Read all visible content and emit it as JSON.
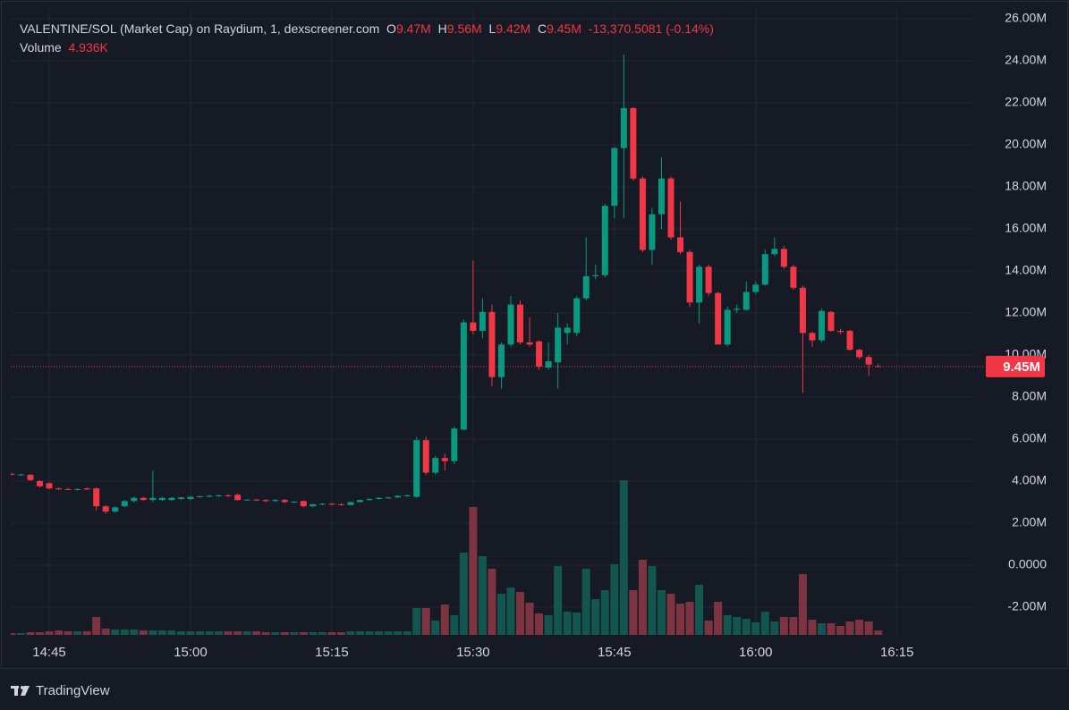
{
  "chart_data": {
    "type": "candlestick",
    "header": {
      "title": "VALENTINE/SOL (Market Cap) on Raydium, 1, dexscreener.com",
      "open_label": "O",
      "open": {
        "value": 9470000,
        "label": "9.47M"
      },
      "high_label": "H",
      "high": {
        "value": 9560000,
        "label": "9.56M"
      },
      "low_label": "L",
      "low": {
        "value": 9420000,
        "label": "9.42M"
      },
      "close_label": "C",
      "close": {
        "value": 9450000,
        "label": "9.45M"
      },
      "change": {
        "value": -13370.5081,
        "label": "-13,370.5081"
      },
      "change_pct": {
        "value": -0.14,
        "label": "(-0.14%)"
      },
      "volume_label": "Volume",
      "volume": {
        "value": 4936,
        "label": "4.936K"
      }
    },
    "categories": [
      null,
      null,
      null,
      null,
      "14:45",
      null,
      null,
      null,
      null,
      null,
      null,
      null,
      null,
      null,
      null,
      null,
      null,
      null,
      null,
      "15:00",
      null,
      null,
      null,
      null,
      null,
      null,
      null,
      null,
      null,
      null,
      null,
      null,
      null,
      null,
      "15:15",
      null,
      null,
      null,
      null,
      null,
      null,
      null,
      null,
      null,
      null,
      null,
      null,
      null,
      null,
      "15:30",
      null,
      null,
      null,
      null,
      null,
      null,
      null,
      null,
      null,
      null,
      null,
      null,
      null,
      null,
      "15:45",
      null,
      null,
      null,
      null,
      null,
      null,
      null,
      null,
      null,
      null,
      null,
      null,
      null,
      null,
      "16:00",
      null,
      null,
      null,
      null,
      null,
      null,
      null,
      null,
      null,
      null,
      null,
      null,
      null,
      null,
      "16:15"
    ],
    "open": [
      4350000,
      4300000,
      4300000,
      4000000,
      3900000,
      3650000,
      3620000,
      3600000,
      3650000,
      3650000,
      2800000,
      2550000,
      2800000,
      3050000,
      3200000,
      3100000,
      3100000,
      3100000,
      3150000,
      3150000,
      3250000,
      3280000,
      3300000,
      3320000,
      3350000,
      3100000,
      3120000,
      3100000,
      3050000,
      3100000,
      3000000,
      3050000,
      2800000,
      2900000,
      2920000,
      2900000,
      2860000,
      3000000,
      3100000,
      3150000,
      3200000,
      3220000,
      3300000,
      3250000,
      5950000,
      4400000,
      5100000,
      4950000,
      6450000,
      11550000,
      11150000,
      12050000,
      8950000,
      10500000,
      12400000,
      10600000,
      10650000,
      9400000,
      9650000,
      11050000,
      11050000,
      12700000,
      13750000,
      13800000,
      17100000,
      19850000,
      21750000,
      18400000,
      15000000,
      16700000,
      18400000,
      15600000,
      14900000,
      12500000,
      14200000,
      12950000,
      10500000,
      12150000,
      12150000,
      13000000,
      13350000,
      14800000,
      15050000,
      14200000,
      13200000,
      11050000,
      10700000,
      12050000,
      11150000,
      11150000,
      10250000,
      9900000,
      9470000,
      null,
      null
    ],
    "high": [
      4400000,
      4350000,
      4350000,
      4050000,
      3950000,
      3700000,
      3680000,
      3660000,
      3700000,
      3700000,
      2850000,
      2800000,
      3100000,
      3250000,
      3250000,
      4500000,
      3250000,
      3250000,
      3250000,
      3300000,
      3300000,
      3350000,
      3360000,
      3380000,
      3400000,
      3150000,
      3160000,
      3140000,
      3150000,
      3150000,
      3050000,
      3080000,
      2920000,
      2950000,
      2960000,
      2940000,
      3020000,
      3120000,
      3180000,
      3240000,
      3250000,
      3320000,
      3350000,
      6100000,
      6100000,
      5200000,
      5300000,
      6600000,
      11700000,
      14500000,
      12700000,
      12400000,
      10600000,
      12800000,
      12600000,
      11800000,
      10700000,
      10600000,
      12000000,
      11500000,
      12800000,
      15600000,
      14300000,
      17200000,
      19900000,
      24300000,
      21800000,
      18500000,
      17000000,
      19400000,
      18500000,
      17300000,
      15000000,
      14300000,
      14300000,
      13000000,
      12300000,
      12400000,
      13500000,
      13500000,
      15000000,
      15600000,
      15200000,
      14300000,
      13300000,
      11100000,
      12200000,
      12100000,
      11250000,
      11200000,
      10300000,
      10000000,
      9560000,
      null,
      null
    ],
    "low": [
      4280000,
      4250000,
      4000000,
      3700000,
      3600000,
      3580000,
      3580000,
      3550000,
      3580000,
      2600000,
      2450000,
      2500000,
      2750000,
      3000000,
      3050000,
      3000000,
      3050000,
      3050000,
      3100000,
      3100000,
      3200000,
      3220000,
      3250000,
      3250000,
      3050000,
      3050000,
      3050000,
      3000000,
      3000000,
      2950000,
      2950000,
      2750000,
      2750000,
      2850000,
      2850000,
      2820000,
      2840000,
      2980000,
      3060000,
      3120000,
      3150000,
      3200000,
      3250000,
      3200000,
      4300000,
      4300000,
      4500000,
      4800000,
      6400000,
      11000000,
      10800000,
      8500000,
      8400000,
      10400000,
      10500000,
      10400000,
      9300000,
      9300000,
      8400000,
      10500000,
      10900000,
      12600000,
      13600000,
      13700000,
      16500000,
      16500000,
      18300000,
      14900000,
      14300000,
      16000000,
      15500000,
      14800000,
      12300000,
      11500000,
      12800000,
      10500000,
      10400000,
      12000000,
      12100000,
      12900000,
      13300000,
      14700000,
      14100000,
      13100000,
      8200000,
      10400000,
      10600000,
      11100000,
      11000000,
      10200000,
      9800000,
      9000000,
      9420000,
      null,
      null
    ],
    "close": [
      4300000,
      4320000,
      4050000,
      3750000,
      3650000,
      3620000,
      3600000,
      3620000,
      3600000,
      2800000,
      2550000,
      2750000,
      3050000,
      3200000,
      3100000,
      3200000,
      3200000,
      3200000,
      3220000,
      3250000,
      3280000,
      3300000,
      3320000,
      3300000,
      3100000,
      3120000,
      3100000,
      3050000,
      3100000,
      3000000,
      3020000,
      2800000,
      2900000,
      2920000,
      2900000,
      2860000,
      3000000,
      3100000,
      3150000,
      3200000,
      3220000,
      3300000,
      3320000,
      5950000,
      4400000,
      5100000,
      4950000,
      6500000,
      11550000,
      11150000,
      12050000,
      8950000,
      10500000,
      12400000,
      10600000,
      10500000,
      9450000,
      9700000,
      11300000,
      11300000,
      12700000,
      13750000,
      13800000,
      17100000,
      19850000,
      21750000,
      18400000,
      15000000,
      16700000,
      18400000,
      15600000,
      14900000,
      12500000,
      14200000,
      12950000,
      10500000,
      12150000,
      12200000,
      13000000,
      13350000,
      14800000,
      15050000,
      14200000,
      13200000,
      11050000,
      10700000,
      12100000,
      11150000,
      11100000,
      10250000,
      9900000,
      9550000,
      9450000,
      null,
      null
    ],
    "volume_values": [
      2000,
      2000,
      3000,
      3000,
      4000,
      5000,
      4000,
      4000,
      4000,
      20000,
      7000,
      6000,
      6000,
      6000,
      5000,
      5000,
      5000,
      5000,
      4000,
      4000,
      4000,
      4000,
      4000,
      4000,
      4000,
      4000,
      4000,
      3000,
      3000,
      3000,
      3000,
      3000,
      3000,
      3000,
      3000,
      3000,
      4000,
      4000,
      4000,
      4000,
      4000,
      4000,
      4000,
      30000,
      30000,
      16000,
      34000,
      22000,
      92000,
      143000,
      88000,
      74000,
      46000,
      53000,
      48000,
      36000,
      24000,
      22000,
      77000,
      26000,
      25000,
      74000,
      40000,
      50000,
      79000,
      173000,
      50000,
      84000,
      77000,
      50000,
      46000,
      35000,
      37000,
      56000,
      16000,
      37000,
      22000,
      20000,
      18000,
      14000,
      26000,
      15000,
      20000,
      20000,
      68000,
      17000,
      13000,
      13000,
      10000,
      15000,
      17000,
      15000,
      4936,
      null,
      null
    ],
    "ylim": [
      -3320000,
      26470000
    ],
    "yticks": [
      {
        "value": 26000000,
        "label": "26.00M"
      },
      {
        "value": 24000000,
        "label": "24.00M"
      },
      {
        "value": 22000000,
        "label": "22.00M"
      },
      {
        "value": 20000000,
        "label": "20.00M"
      },
      {
        "value": 18000000,
        "label": "18.00M"
      },
      {
        "value": 16000000,
        "label": "16.00M"
      },
      {
        "value": 14000000,
        "label": "14.00M"
      },
      {
        "value": 12000000,
        "label": "12.00M"
      },
      {
        "value": 10000000,
        "label": "10.00M"
      },
      {
        "value": 8000000,
        "label": "8.00M"
      },
      {
        "value": 6000000,
        "label": "6.00M"
      },
      {
        "value": 4000000,
        "label": "4.00M"
      },
      {
        "value": 2000000,
        "label": "2.00M"
      },
      {
        "value": 0,
        "label": "0.0000"
      },
      {
        "value": -2000000,
        "label": "-2.00M"
      }
    ],
    "last_price": {
      "value": 9450000,
      "label": "9.45M"
    },
    "grid": true,
    "up_color": "#089981",
    "down_color": "#f23645",
    "up_volume_color": "#12564f",
    "down_volume_color": "#7d3440"
  },
  "footer": {
    "brand": "TradingView"
  }
}
